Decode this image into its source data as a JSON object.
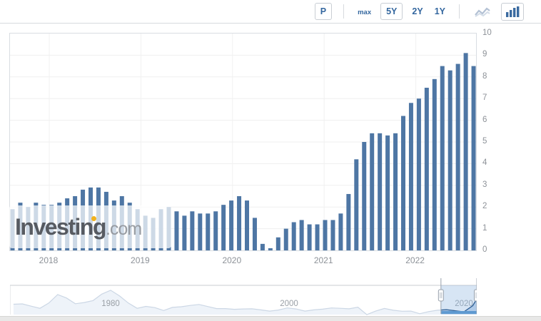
{
  "colors": {
    "accent": "#34679f",
    "bar": "#4e76a4",
    "grid": "#efefef",
    "axis_text": "#8d9298",
    "nav_area_fill": "#eef3f9",
    "nav_line": "#ccd7e5",
    "nav_selected_line": "#2e5f94",
    "nav_selection_fill": "rgba(140,180,224,0.35)",
    "nav_selection_bar": "#5f9ad1",
    "watermark_dot": "#f2b21d"
  },
  "toolbar": {
    "p_label": "P",
    "range_buttons": [
      {
        "label": "max",
        "selected": false
      },
      {
        "label": "5Y",
        "selected": true
      },
      {
        "label": "2Y",
        "selected": false
      },
      {
        "label": "1Y",
        "selected": false
      }
    ],
    "chart_type": {
      "line_selected": false,
      "bar_selected": true
    }
  },
  "watermark": {
    "brand": "Investing",
    "tld": ".com"
  },
  "chart_data": {
    "type": "bar",
    "title": "",
    "xlabel": "",
    "ylabel": "",
    "ylim": [
      0,
      10
    ],
    "yticks": [
      0,
      1,
      2,
      3,
      4,
      5,
      6,
      7,
      8,
      9,
      10
    ],
    "xticks": [
      "2018",
      "2019",
      "2020",
      "2021",
      "2022"
    ],
    "grid": true,
    "months": [
      "2017-08",
      "2017-09",
      "2017-10",
      "2017-11",
      "2017-12",
      "2018-01",
      "2018-02",
      "2018-03",
      "2018-04",
      "2018-05",
      "2018-06",
      "2018-07",
      "2018-08",
      "2018-09",
      "2018-10",
      "2018-11",
      "2018-12",
      "2019-01",
      "2019-02",
      "2019-03",
      "2019-04",
      "2019-05",
      "2019-06",
      "2019-07",
      "2019-08",
      "2019-09",
      "2019-10",
      "2019-11",
      "2019-12",
      "2020-01",
      "2020-02",
      "2020-03",
      "2020-04",
      "2020-05",
      "2020-06",
      "2020-07",
      "2020-08",
      "2020-09",
      "2020-10",
      "2020-11",
      "2020-12",
      "2021-01",
      "2021-02",
      "2021-03",
      "2021-04",
      "2021-05",
      "2021-06",
      "2021-07",
      "2021-08",
      "2021-09",
      "2021-10",
      "2021-11",
      "2021-12",
      "2022-01",
      "2022-02",
      "2022-03",
      "2022-04",
      "2022-05",
      "2022-06",
      "2022-07"
    ],
    "values": [
      1.9,
      2.2,
      2.0,
      2.2,
      2.1,
      2.1,
      2.2,
      2.4,
      2.5,
      2.8,
      2.9,
      2.9,
      2.7,
      2.3,
      2.5,
      2.2,
      1.9,
      1.6,
      1.5,
      1.9,
      2.0,
      1.8,
      1.6,
      1.8,
      1.7,
      1.7,
      1.8,
      2.1,
      2.3,
      2.5,
      2.3,
      1.5,
      0.3,
      0.1,
      0.6,
      1.0,
      1.3,
      1.4,
      1.2,
      1.2,
      1.4,
      1.4,
      1.7,
      2.6,
      4.2,
      5.0,
      5.4,
      5.4,
      5.3,
      5.4,
      6.2,
      6.8,
      7.0,
      7.5,
      7.9,
      8.5,
      8.3,
      8.6,
      9.1,
      8.5
    ]
  },
  "navigator": {
    "type": "area",
    "tick_labels": [
      "1980",
      "2000",
      "2020"
    ],
    "years": [
      1969,
      1970,
      1971,
      1972,
      1973,
      1974,
      1975,
      1976,
      1977,
      1978,
      1979,
      1980,
      1981,
      1982,
      1983,
      1984,
      1985,
      1986,
      1987,
      1988,
      1989,
      1990,
      1991,
      1992,
      1993,
      1994,
      1995,
      1996,
      1997,
      1998,
      1999,
      2000,
      2001,
      2002,
      2003,
      2004,
      2005,
      2006,
      2007,
      2008,
      2009,
      2010,
      2011,
      2012,
      2013,
      2014,
      2015,
      2016,
      2017,
      2018,
      2019,
      2020,
      2021,
      2022
    ],
    "values": [
      5.5,
      5.7,
      4.4,
      3.2,
      6.2,
      11.0,
      9.1,
      5.8,
      6.5,
      7.6,
      11.3,
      13.5,
      10.3,
      6.2,
      3.2,
      4.3,
      3.6,
      1.9,
      3.7,
      4.1,
      4.8,
      5.4,
      4.2,
      3.0,
      3.0,
      2.6,
      2.8,
      2.9,
      2.3,
      1.6,
      2.2,
      3.4,
      2.8,
      1.6,
      2.3,
      2.7,
      3.4,
      3.2,
      2.9,
      3.8,
      -0.4,
      1.6,
      3.1,
      2.1,
      1.5,
      1.6,
      0.1,
      1.3,
      2.1,
      2.4,
      1.8,
      1.2,
      4.7,
      8.5
    ],
    "selection": {
      "start_year": 2017.4,
      "end_year": 2022.6
    }
  }
}
